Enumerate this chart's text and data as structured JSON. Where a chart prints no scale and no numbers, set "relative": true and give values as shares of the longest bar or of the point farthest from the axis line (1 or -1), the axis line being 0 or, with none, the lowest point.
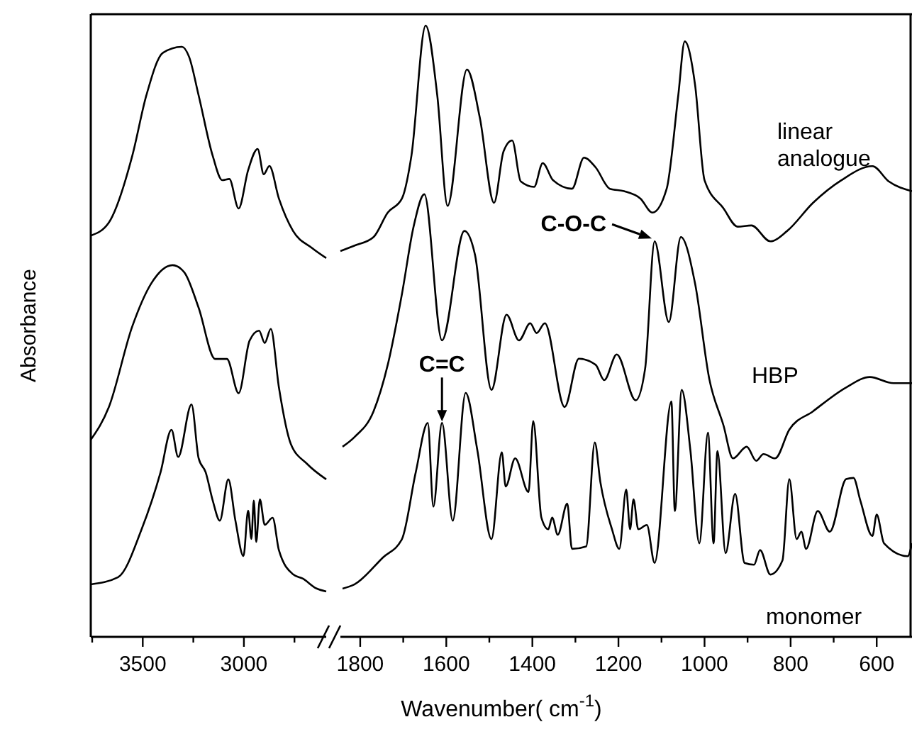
{
  "chart_data": [
    {
      "type": "line",
      "relative": true,
      "ylabel": "Absorbance",
      "xlim": [
        3757,
        2593
      ],
      "xticks": [
        {
          "value": 3750,
          "label": null
        },
        3500,
        {
          "value": 3250,
          "label": null
        },
        3000,
        {
          "value": 2750,
          "label": null
        }
      ],
      "series": [
        {
          "color": "#000000",
          "x": [
            3757,
            3668,
            3552,
            3482,
            3400,
            3306,
            3271,
            3224,
            3154,
            3107,
            3072,
            3026,
            2979,
            2932,
            2902,
            2874,
            2827,
            2757,
            2663,
            2593
          ],
          "values": [
            0.68,
            0.702,
            0.815,
            0.918,
            0.99,
            1.0,
            0.983,
            0.918,
            0.815,
            0.774,
            0.776,
            0.726,
            0.791,
            0.827,
            0.784,
            0.798,
            0.743,
            0.688,
            0.659,
            0.642
          ]
        },
        {
          "color": "#000000",
          "x": [
            3757,
            3668,
            3552,
            3458,
            3353,
            3295,
            3224,
            3142,
            3084,
            3026,
            2972,
            2925,
            2897,
            2867,
            2827,
            2768,
            2687,
            2593
          ],
          "values": [
            0.334,
            0.389,
            0.526,
            0.599,
            0.63,
            0.618,
            0.558,
            0.471,
            0.471,
            0.413,
            0.502,
            0.519,
            0.498,
            0.522,
            0.423,
            0.327,
            0.293,
            0.267
          ]
        },
        {
          "color": "#000000",
          "x": [
            3757,
            3622,
            3505,
            3412,
            3358,
            3325,
            3259,
            3224,
            3189,
            3154,
            3119,
            3077,
            3042,
            3002,
            2979,
            2963,
            2951,
            2939,
            2921,
            2897,
            2858,
            2827,
            2757,
            2710,
            2641,
            2593
          ],
          "values": [
            0.089,
            0.101,
            0.183,
            0.279,
            0.351,
            0.305,
            0.394,
            0.303,
            0.279,
            0.231,
            0.197,
            0.267,
            0.197,
            0.137,
            0.214,
            0.166,
            0.231,
            0.161,
            0.233,
            0.19,
            0.202,
            0.147,
            0.106,
            0.099,
            0.082,
            0.077
          ]
        }
      ]
    },
    {
      "type": "line",
      "relative": true,
      "xlabel": "Wavenumber( cm$^{-1}$)",
      "xlim": [
        1846,
        518
      ],
      "xticks": [
        1800,
        {
          "value": 1700,
          "label": null
        },
        1600,
        {
          "value": 1500,
          "label": null
        },
        1400,
        {
          "value": 1300,
          "label": null
        },
        1200,
        {
          "value": 1100,
          "label": null
        },
        1000,
        {
          "value": 900,
          "label": null
        },
        800,
        {
          "value": 700,
          "label": null
        },
        600
      ],
      "annotations": [
        {
          "text": "C=C",
          "x": 1610,
          "y": 0.35
        },
        {
          "text": "C-O-C",
          "x": 1116,
          "y": 0.647
        }
      ],
      "series": [
        {
          "name": "linear analogue",
          "color": "#000000",
          "x": [
            1846,
            1813,
            1769,
            1736,
            1703,
            1681,
            1648,
            1621,
            1597,
            1552,
            1522,
            1489,
            1467,
            1447,
            1427,
            1396,
            1376,
            1352,
            1308,
            1280,
            1253,
            1220,
            1187,
            1149,
            1121,
            1088,
            1061,
            1046,
            1022,
            1000,
            956,
            923,
            891,
            847,
            808,
            748,
            682,
            610,
            572,
            518
          ],
          "values": [
            0.631,
            0.64,
            0.654,
            0.694,
            0.717,
            0.787,
            1.0,
            0.886,
            0.705,
            0.928,
            0.849,
            0.71,
            0.794,
            0.812,
            0.745,
            0.736,
            0.775,
            0.747,
            0.733,
            0.784,
            0.768,
            0.733,
            0.729,
            0.717,
            0.694,
            0.733,
            0.886,
            0.974,
            0.903,
            0.747,
            0.701,
            0.671,
            0.673,
            0.647,
            0.664,
            0.71,
            0.747,
            0.77,
            0.745,
            0.729
          ]
        },
        {
          "name": "HBP",
          "color": "#000000",
          "x": [
            1841,
            1813,
            1769,
            1736,
            1703,
            1676,
            1651,
            1610,
            1558,
            1533,
            1495,
            1460,
            1431,
            1405,
            1390,
            1371,
            1325,
            1292,
            1253,
            1233,
            1204,
            1160,
            1138,
            1116,
            1083,
            1055,
            1022,
            989,
            956,
            934,
            902,
            880,
            863,
            836,
            803,
            748,
            671,
            616,
            561,
            518
          ],
          "values": [
            0.311,
            0.327,
            0.369,
            0.445,
            0.561,
            0.671,
            0.724,
            0.485,
            0.664,
            0.624,
            0.404,
            0.527,
            0.485,
            0.513,
            0.497,
            0.513,
            0.376,
            0.455,
            0.445,
            0.42,
            0.462,
            0.387,
            0.439,
            0.647,
            0.515,
            0.654,
            0.578,
            0.422,
            0.346,
            0.292,
            0.311,
            0.288,
            0.299,
            0.292,
            0.339,
            0.369,
            0.408,
            0.425,
            0.415,
            0.415
          ]
        },
        {
          "name": "monomer",
          "color": "#000000",
          "x": [
            1841,
            1813,
            1747,
            1703,
            1671,
            1643,
            1630,
            1610,
            1585,
            1555,
            1528,
            1495,
            1471,
            1462,
            1440,
            1409,
            1398,
            1379,
            1363,
            1354,
            1341,
            1319,
            1308,
            1275,
            1255,
            1242,
            1215,
            1198,
            1182,
            1173,
            1165,
            1154,
            1134,
            1116,
            1077,
            1069,
            1053,
            1033,
            1012,
            992,
            979,
            970,
            951,
            929,
            907,
            885,
            871,
            847,
            819,
            803,
            786,
            775,
            764,
            737,
            709,
            671,
            654,
            638,
            610,
            600,
            583,
            528,
            518
          ],
          "values": [
            0.079,
            0.086,
            0.13,
            0.16,
            0.269,
            0.35,
            0.213,
            0.35,
            0.19,
            0.399,
            0.306,
            0.16,
            0.302,
            0.246,
            0.292,
            0.237,
            0.353,
            0.195,
            0.176,
            0.195,
            0.167,
            0.218,
            0.144,
            0.148,
            0.318,
            0.253,
            0.176,
            0.144,
            0.241,
            0.176,
            0.225,
            0.176,
            0.183,
            0.121,
            0.385,
            0.206,
            0.404,
            0.306,
            0.153,
            0.334,
            0.153,
            0.304,
            0.137,
            0.234,
            0.121,
            0.118,
            0.142,
            0.102,
            0.125,
            0.258,
            0.16,
            0.172,
            0.144,
            0.206,
            0.172,
            0.258,
            0.26,
            0.223,
            0.165,
            0.2,
            0.153,
            0.132,
            0.153
          ]
        }
      ]
    }
  ]
}
